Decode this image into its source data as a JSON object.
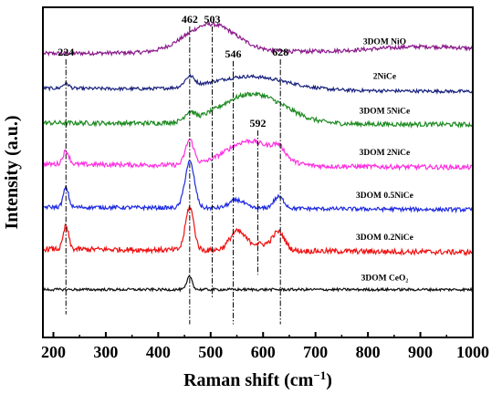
{
  "chart_data": {
    "type": "line",
    "xlabel": "Raman shift (cm",
    "xlabel_sup": "−1",
    "xlabel_close": ")",
    "ylabel": "Intensity (a.u.)",
    "xlim": [
      180,
      1000
    ],
    "xticks": [
      200,
      300,
      400,
      500,
      600,
      700,
      800,
      900,
      1000
    ],
    "grid": false,
    "peak_markers": [
      {
        "label": "224",
        "x": 224
      },
      {
        "label": "462",
        "x": 460
      },
      {
        "label": "503",
        "x": 503
      },
      {
        "label": "546",
        "x": 543
      },
      {
        "label": "592",
        "x": 590
      },
      {
        "label": "628",
        "x": 633
      }
    ],
    "series": [
      {
        "name": "3DOM NiO",
        "color": "#8b1a8b",
        "baseline": 0.86,
        "noise": 0.006,
        "peaks": [
          [
            500,
            0.085,
            48
          ],
          [
            900,
            0.012,
            80
          ]
        ],
        "slope": 0.01
      },
      {
        "name": "2NiCe",
        "color": "#1a237e",
        "baseline": 0.755,
        "noise": 0.005,
        "peaks": [
          [
            224,
            0.015,
            6
          ],
          [
            460,
            0.03,
            9
          ],
          [
            575,
            0.04,
            70
          ]
        ],
        "slope": -0.01
      },
      {
        "name": "3DOM 5NiCe",
        "color": "#1e8b22",
        "baseline": 0.65,
        "noise": 0.007,
        "peaks": [
          [
            460,
            0.025,
            9
          ],
          [
            580,
            0.09,
            60
          ]
        ],
        "slope": -0.005
      },
      {
        "name": "3DOM 2NiCe",
        "color": "#ff2fe0",
        "baseline": 0.525,
        "noise": 0.007,
        "peaks": [
          [
            224,
            0.04,
            6
          ],
          [
            460,
            0.075,
            8
          ],
          [
            575,
            0.075,
            45
          ],
          [
            630,
            0.03,
            12
          ]
        ],
        "slope": -0.01
      },
      {
        "name": "3DOM 0.5NiCe",
        "color": "#1f2be0",
        "baseline": 0.395,
        "noise": 0.006,
        "peaks": [
          [
            224,
            0.06,
            5
          ],
          [
            460,
            0.14,
            9
          ],
          [
            550,
            0.025,
            14
          ],
          [
            630,
            0.035,
            10
          ]
        ],
        "slope": -0.008
      },
      {
        "name": "3DOM 0.2NiCe",
        "color": "#ef1010",
        "baseline": 0.268,
        "noise": 0.008,
        "peaks": [
          [
            224,
            0.07,
            5
          ],
          [
            460,
            0.13,
            8
          ],
          [
            550,
            0.05,
            14
          ],
          [
            630,
            0.05,
            11
          ],
          [
            590,
            0.02,
            30
          ]
        ],
        "slope": -0.01
      },
      {
        "name": "3DOM CeO₂",
        "color": "#111111",
        "baseline": 0.145,
        "noise": 0.004,
        "peaks": [
          [
            460,
            0.04,
            5
          ]
        ],
        "slope": 0.0
      }
    ]
  }
}
